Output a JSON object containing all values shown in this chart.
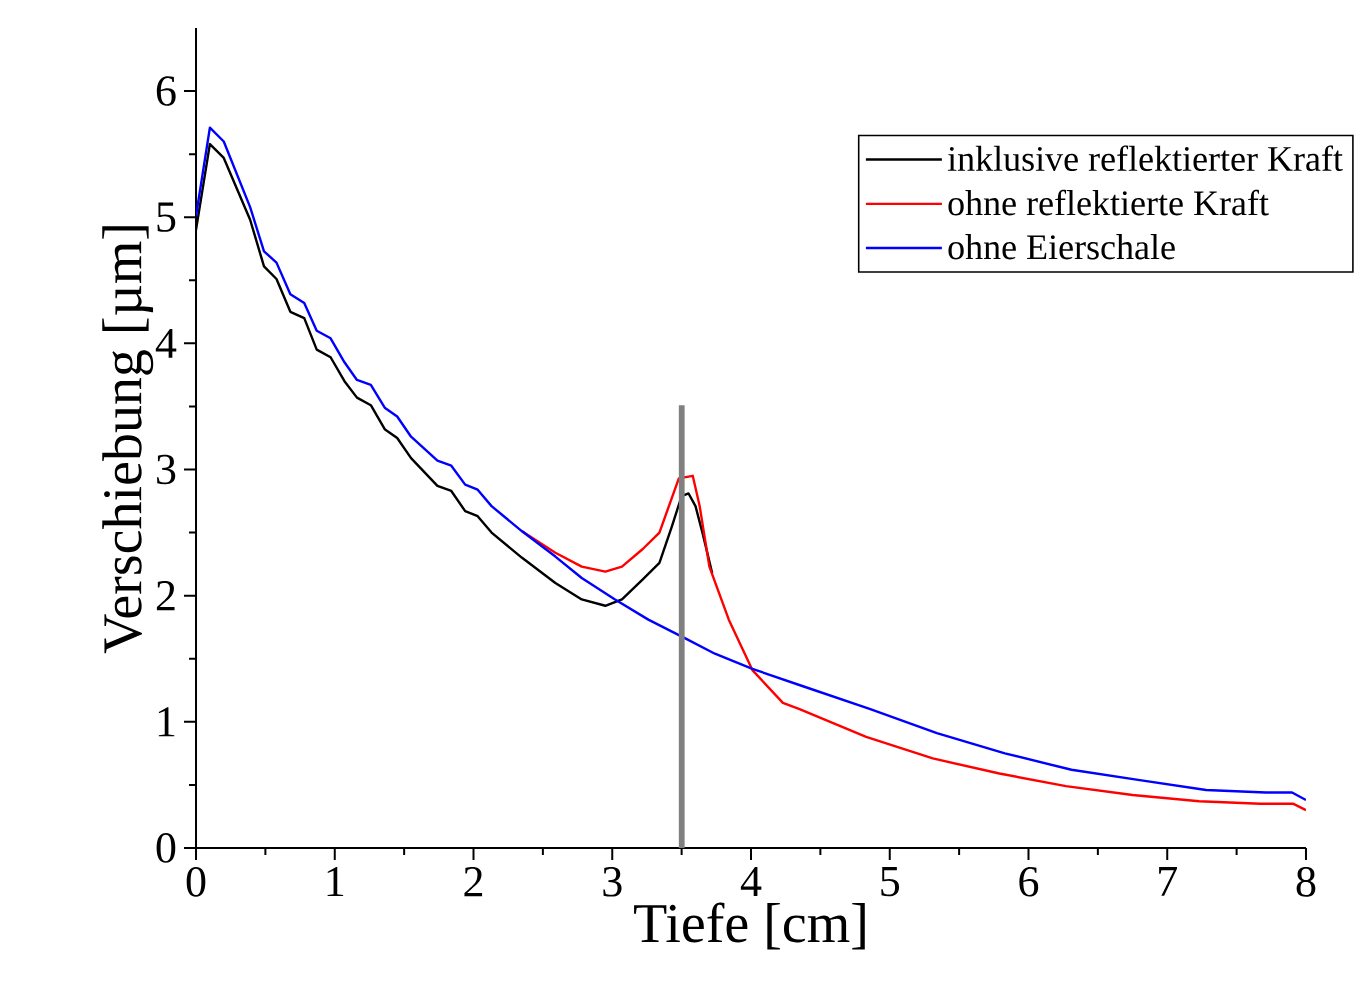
{
  "chart_data": {
    "type": "line",
    "xlabel": "Tiefe [cm]",
    "ylabel": "Verschiebung [µm]",
    "xlim": [
      0,
      8
    ],
    "ylim": [
      0,
      6.5
    ],
    "xticks": [
      0,
      1,
      2,
      3,
      4,
      5,
      6,
      7,
      8
    ],
    "yticks": [
      0,
      1,
      2,
      3,
      4,
      5,
      6
    ],
    "legend": "top right",
    "ref_lines": [
      {
        "axis": "x",
        "value": 3.5,
        "color": "#808080"
      }
    ],
    "series": [
      {
        "name": "inklusive reflektierter Kraft",
        "color": "#000000",
        "x": [
          0,
          0.1,
          0.2,
          0.39,
          0.49,
          0.58,
          0.68,
          0.78,
          0.87,
          0.97,
          1.07,
          1.16,
          1.26,
          1.36,
          1.45,
          1.55,
          1.74,
          1.84,
          1.94,
          2.03,
          2.13,
          2.35,
          2.59,
          2.78,
          2.95,
          3.07,
          3.22,
          3.34,
          3.43,
          3.5,
          3.55,
          3.6,
          3.65,
          3.72
        ],
        "values": [
          4.9,
          5.58,
          5.47,
          4.98,
          4.61,
          4.51,
          4.25,
          4.2,
          3.95,
          3.89,
          3.7,
          3.57,
          3.51,
          3.32,
          3.25,
          3.09,
          2.87,
          2.83,
          2.67,
          2.63,
          2.5,
          2.3,
          2.1,
          1.97,
          1.92,
          1.97,
          2.13,
          2.26,
          2.55,
          2.79,
          2.81,
          2.71,
          2.5,
          2.18
        ]
      },
      {
        "name": "ohne reflektierte Kraft",
        "color": "#ff0000",
        "x": [
          2.35,
          2.59,
          2.78,
          2.95,
          3.07,
          3.22,
          3.34,
          3.48,
          3.58,
          3.63,
          3.7,
          3.84,
          4.01,
          4.23,
          4.35,
          4.83,
          5.31,
          5.79,
          6.27,
          6.75,
          7.23,
          7.67,
          7.91,
          8.0
        ],
        "values": [
          2.51,
          2.34,
          2.23,
          2.19,
          2.23,
          2.37,
          2.5,
          2.93,
          2.95,
          2.71,
          2.23,
          1.81,
          1.41,
          1.15,
          1.1,
          0.88,
          0.71,
          0.59,
          0.49,
          0.42,
          0.37,
          0.35,
          0.35,
          0.3
        ]
      },
      {
        "name": "ohne Eierschale",
        "color": "#0000ff",
        "x": [
          0,
          0.1,
          0.2,
          0.39,
          0.49,
          0.58,
          0.68,
          0.78,
          0.87,
          0.97,
          1.07,
          1.16,
          1.26,
          1.36,
          1.45,
          1.55,
          1.74,
          1.84,
          1.94,
          2.03,
          2.13,
          2.35,
          2.59,
          2.78,
          3.02,
          3.26,
          3.53,
          3.74,
          4.01,
          4.38,
          4.86,
          5.34,
          5.83,
          6.31,
          6.79,
          7.28,
          7.71,
          7.9,
          8.0
        ],
        "values": [
          5.01,
          5.71,
          5.6,
          5.08,
          4.73,
          4.64,
          4.39,
          4.32,
          4.1,
          4.04,
          3.85,
          3.71,
          3.67,
          3.49,
          3.42,
          3.26,
          3.07,
          3.03,
          2.88,
          2.84,
          2.71,
          2.51,
          2.31,
          2.14,
          1.97,
          1.81,
          1.66,
          1.54,
          1.42,
          1.28,
          1.1,
          0.91,
          0.75,
          0.62,
          0.54,
          0.46,
          0.44,
          0.44,
          0.38
        ]
      }
    ]
  }
}
